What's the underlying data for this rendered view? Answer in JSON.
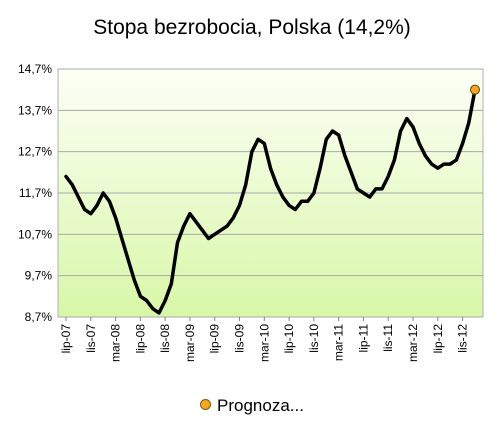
{
  "chart_data": {
    "type": "line",
    "title": "Stopa bezrobocia, Polska (14,2%)",
    "xlabel": "",
    "ylabel": "",
    "ylim": [
      8.7,
      14.7
    ],
    "y_ticks": [
      8.7,
      9.7,
      10.7,
      11.7,
      12.7,
      13.7,
      14.7
    ],
    "y_tick_labels": [
      "8,7%",
      "9,7%",
      "10,7%",
      "11,7%",
      "12,7%",
      "13,7%",
      "14,7%"
    ],
    "x_tick_labels": [
      "lip-07",
      "lis-07",
      "mar-08",
      "lip-08",
      "lis-08",
      "mar-09",
      "lip-09",
      "lis-09",
      "mar-10",
      "lip-10",
      "lis-10",
      "mar-11",
      "lip-11",
      "lis-11",
      "mar-12",
      "lip-12",
      "lis-12"
    ],
    "x": [
      "lip-07",
      "sie-07",
      "wrz-07",
      "paź-07",
      "lis-07",
      "gru-07",
      "sty-08",
      "lut-08",
      "mar-08",
      "kwi-08",
      "maj-08",
      "cze-08",
      "lip-08",
      "sie-08",
      "wrz-08",
      "paź-08",
      "lis-08",
      "gru-08",
      "sty-09",
      "lut-09",
      "mar-09",
      "kwi-09",
      "maj-09",
      "cze-09",
      "lip-09",
      "sie-09",
      "wrz-09",
      "paź-09",
      "lis-09",
      "gru-09",
      "sty-10",
      "lut-10",
      "mar-10",
      "kwi-10",
      "maj-10",
      "cze-10",
      "lip-10",
      "sie-10",
      "wrz-10",
      "paź-10",
      "lis-10",
      "gru-10",
      "sty-11",
      "lut-11",
      "mar-11",
      "kwi-11",
      "maj-11",
      "cze-11",
      "lip-11",
      "sie-11",
      "wrz-11",
      "paź-11",
      "lis-11",
      "gru-11",
      "sty-12",
      "lut-12",
      "mar-12",
      "kwi-12",
      "maj-12",
      "cze-12",
      "lip-12",
      "sie-12",
      "wrz-12",
      "paź-12",
      "lis-12",
      "gru-12",
      "sty-13"
    ],
    "series": [
      {
        "name": "",
        "values": [
          12.1,
          11.9,
          11.6,
          11.3,
          11.2,
          11.4,
          11.7,
          11.5,
          11.1,
          10.6,
          10.1,
          9.6,
          9.2,
          9.1,
          8.9,
          8.8,
          9.1,
          9.5,
          10.5,
          10.9,
          11.2,
          11.0,
          10.8,
          10.6,
          10.7,
          10.8,
          10.9,
          11.1,
          11.4,
          11.9,
          12.7,
          13.0,
          12.9,
          12.3,
          11.9,
          11.6,
          11.4,
          11.3,
          11.5,
          11.5,
          11.7,
          12.3,
          13.0,
          13.2,
          13.1,
          12.6,
          12.2,
          11.8,
          11.7,
          11.6,
          11.8,
          11.8,
          12.1,
          12.5,
          13.2,
          13.5,
          13.3,
          12.9,
          12.6,
          12.4,
          12.3,
          12.4,
          12.4,
          12.5,
          12.9,
          13.4,
          14.2
        ],
        "color": "#000000"
      }
    ],
    "forecast": {
      "label": "Prognoza...",
      "value": 14.2,
      "color": "#f5a623"
    },
    "grid": true,
    "legend_position": "bottom",
    "plot_background": [
      "#fdfff6",
      "#d8f7a8"
    ]
  }
}
